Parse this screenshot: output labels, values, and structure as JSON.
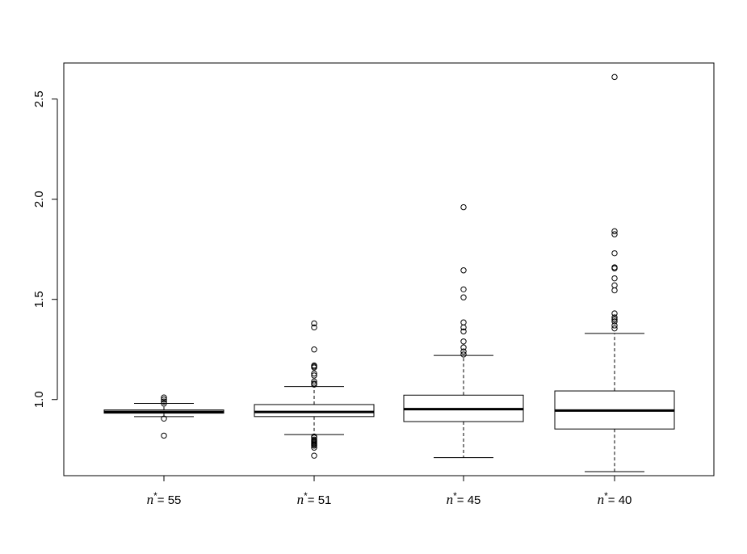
{
  "chart_data": {
    "type": "boxplot",
    "title": "",
    "xlabel": "",
    "ylabel": "",
    "ylim": [
      0.62,
      2.68
    ],
    "yticks": [
      1.0,
      1.5,
      2.0,
      2.5
    ],
    "ytick_labels": [
      "1.0",
      "1.5",
      "2.0",
      "2.5"
    ],
    "grid": false,
    "legend": "none",
    "categories": [
      {
        "var": "n",
        "sup": "*",
        "rest": "= 55"
      },
      {
        "var": "n",
        "sup": "*",
        "rest": "= 51"
      },
      {
        "var": "n",
        "sup": "*",
        "rest": "= 45"
      },
      {
        "var": "n",
        "sup": "*",
        "rest": "= 40"
      }
    ],
    "boxes": [
      {
        "whisker_low": 0.915,
        "q1": 0.932,
        "median": 0.938,
        "q3": 0.948,
        "whisker_high": 0.981,
        "outliers": [
          1.01,
          1.0,
          0.99,
          0.98,
          0.905,
          0.82
        ]
      },
      {
        "whisker_low": 0.825,
        "q1": 0.915,
        "median": 0.938,
        "q3": 0.975,
        "whisker_high": 1.065,
        "outliers": [
          1.38,
          1.36,
          1.25,
          1.17,
          1.165,
          1.16,
          1.13,
          1.12,
          1.09,
          1.08,
          1.075,
          0.815,
          0.81,
          0.8,
          0.795,
          0.79,
          0.785,
          0.78,
          0.775,
          0.77,
          0.76,
          0.72
        ]
      },
      {
        "whisker_low": 0.71,
        "q1": 0.89,
        "median": 0.952,
        "q3": 1.022,
        "whisker_high": 1.22,
        "outliers": [
          1.96,
          1.645,
          1.55,
          1.51,
          1.385,
          1.36,
          1.34,
          1.29,
          1.26,
          1.24,
          1.225
        ]
      },
      {
        "whisker_low": 0.64,
        "q1": 0.853,
        "median": 0.945,
        "q3": 1.043,
        "whisker_high": 1.33,
        "outliers": [
          2.61,
          1.84,
          1.825,
          1.73,
          1.66,
          1.655,
          1.605,
          1.57,
          1.545,
          1.43,
          1.41,
          1.4,
          1.39,
          1.37,
          1.355
        ]
      }
    ]
  }
}
